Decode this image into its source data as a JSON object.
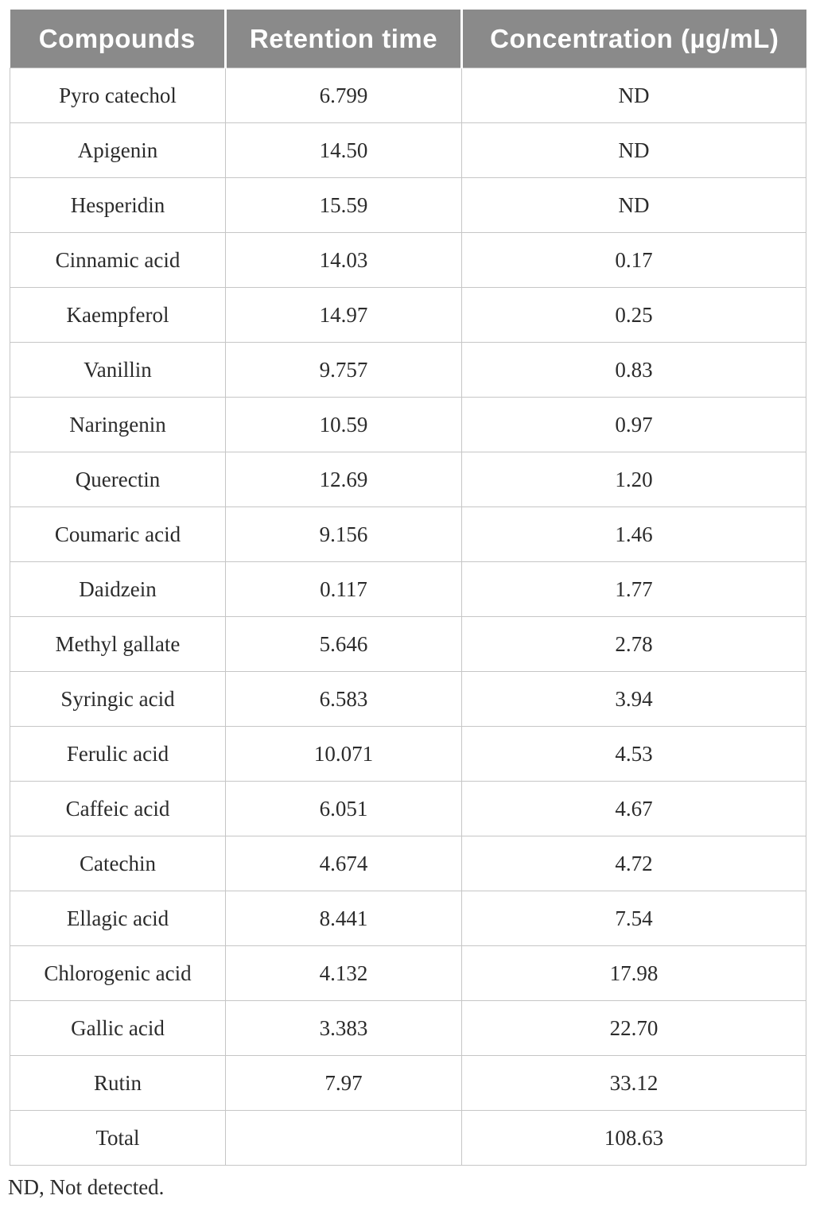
{
  "table": {
    "columns": [
      "Compounds",
      "Retention time",
      "Concentration (µg/mL)"
    ],
    "rows": [
      {
        "compound": "Pyro catechol",
        "retention_time": "6.799",
        "concentration": "ND"
      },
      {
        "compound": "Apigenin",
        "retention_time": "14.50",
        "concentration": "ND"
      },
      {
        "compound": "Hesperidin",
        "retention_time": "15.59",
        "concentration": "ND"
      },
      {
        "compound": "Cinnamic acid",
        "retention_time": "14.03",
        "concentration": "0.17"
      },
      {
        "compound": "Kaempferol",
        "retention_time": "14.97",
        "concentration": "0.25"
      },
      {
        "compound": "Vanillin",
        "retention_time": "9.757",
        "concentration": "0.83"
      },
      {
        "compound": "Naringenin",
        "retention_time": "10.59",
        "concentration": "0.97"
      },
      {
        "compound": "Querectin",
        "retention_time": "12.69",
        "concentration": "1.20"
      },
      {
        "compound": "Coumaric acid",
        "retention_time": "9.156",
        "concentration": "1.46"
      },
      {
        "compound": "Daidzein",
        "retention_time": "0.117",
        "concentration": "1.77"
      },
      {
        "compound": "Methyl gallate",
        "retention_time": "5.646",
        "concentration": "2.78"
      },
      {
        "compound": "Syringic acid",
        "retention_time": "6.583",
        "concentration": "3.94"
      },
      {
        "compound": "Ferulic acid",
        "retention_time": "10.071",
        "concentration": "4.53"
      },
      {
        "compound": "Caffeic acid",
        "retention_time": "6.051",
        "concentration": "4.67"
      },
      {
        "compound": "Catechin",
        "retention_time": "4.674",
        "concentration": "4.72"
      },
      {
        "compound": "Ellagic acid",
        "retention_time": "8.441",
        "concentration": "7.54"
      },
      {
        "compound": "Chlorogenic acid",
        "retention_time": "4.132",
        "concentration": "17.98"
      },
      {
        "compound": "Gallic acid",
        "retention_time": "3.383",
        "concentration": "22.70"
      },
      {
        "compound": "Rutin",
        "retention_time": "7.97",
        "concentration": "33.12"
      },
      {
        "compound": "Total",
        "retention_time": "",
        "concentration": "108.63"
      }
    ]
  },
  "footnote": "ND, Not detected.",
  "colors": {
    "header_bg": "#8a8a8a",
    "header_text": "#ffffff",
    "body_text": "#2b2b2b",
    "grid_line": "#c6c6c6"
  }
}
